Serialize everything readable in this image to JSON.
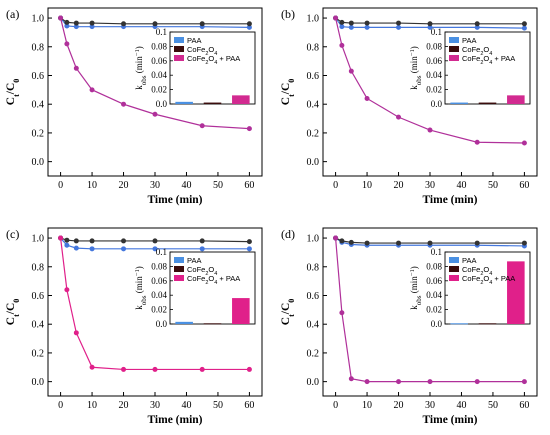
{
  "legend_labels": [
    "PAA",
    "CoFe2O4",
    "CoFe2O4 + PAA"
  ],
  "chart_data": [
    {
      "type": "line",
      "panel_label": "(a)",
      "xlabel": "Time (min)",
      "ylabel": "Ct/C0",
      "x": [
        0,
        2,
        5,
        10,
        20,
        30,
        45,
        60
      ],
      "xlim": [
        -4,
        64
      ],
      "xticks": [
        0,
        10,
        20,
        30,
        40,
        50,
        60
      ],
      "ylim": [
        -0.1,
        1.07
      ],
      "yticks": [
        0.0,
        0.2,
        0.4,
        0.6,
        0.8,
        1.0
      ],
      "colors": [
        "#4477dd",
        "#333333",
        "#b0309a"
      ],
      "series": [
        {
          "name": "PAA",
          "values": [
            1.0,
            0.945,
            0.94,
            0.94,
            0.94,
            0.94,
            0.94,
            0.935
          ]
        },
        {
          "name": "CoFe2O4",
          "values": [
            1.0,
            0.97,
            0.965,
            0.965,
            0.96,
            0.96,
            0.96,
            0.96
          ]
        },
        {
          "name": "CoFe2O4 + PAA",
          "values": [
            1.0,
            0.82,
            0.65,
            0.5,
            0.4,
            0.33,
            0.25,
            0.23
          ]
        }
      ],
      "inset": {
        "type": "bar",
        "ylabel": "kobs (min-1)",
        "ylim": [
          0,
          0.1
        ],
        "yticks": [
          0.0,
          0.02,
          0.04,
          0.06,
          0.08,
          0.1
        ],
        "categories": [
          "PAA",
          "CoFe2O4",
          "CoFe2O4 + PAA"
        ],
        "values": [
          0.003,
          0.002,
          0.012
        ],
        "colors": [
          "#4a90e2",
          "#3a0c0c",
          "#d22a90"
        ]
      }
    },
    {
      "type": "line",
      "panel_label": "(b)",
      "xlabel": "Time (min)",
      "ylabel": "Ct/C0",
      "x": [
        0,
        2,
        5,
        10,
        20,
        30,
        45,
        60
      ],
      "xlim": [
        -4,
        64
      ],
      "xticks": [
        0,
        10,
        20,
        30,
        40,
        50,
        60
      ],
      "ylim": [
        -0.1,
        1.07
      ],
      "yticks": [
        0.0,
        0.2,
        0.4,
        0.6,
        0.8,
        1.0
      ],
      "colors": [
        "#4477dd",
        "#333333",
        "#b0309a"
      ],
      "series": [
        {
          "name": "PAA",
          "values": [
            1.0,
            0.94,
            0.935,
            0.935,
            0.935,
            0.935,
            0.935,
            0.93
          ]
        },
        {
          "name": "CoFe2O4",
          "values": [
            1.0,
            0.97,
            0.965,
            0.965,
            0.965,
            0.96,
            0.96,
            0.96
          ]
        },
        {
          "name": "CoFe2O4 + PAA",
          "values": [
            1.0,
            0.81,
            0.63,
            0.44,
            0.31,
            0.22,
            0.135,
            0.13
          ]
        }
      ],
      "inset": {
        "type": "bar",
        "ylabel": "kobs (min-1)",
        "ylim": [
          0,
          0.1
        ],
        "yticks": [
          0.0,
          0.02,
          0.04,
          0.06,
          0.08,
          0.1
        ],
        "categories": [
          "PAA",
          "CoFe2O4",
          "CoFe2O4 + PAA"
        ],
        "values": [
          0.002,
          0.002,
          0.012
        ],
        "colors": [
          "#4a90e2",
          "#3a0c0c",
          "#d22a90"
        ]
      }
    },
    {
      "type": "line",
      "panel_label": "(c)",
      "xlabel": "Time (min)",
      "ylabel": "Ct/C0",
      "x": [
        0,
        2,
        5,
        10,
        20,
        30,
        45,
        60
      ],
      "xlim": [
        -4,
        64
      ],
      "xticks": [
        0,
        10,
        20,
        30,
        40,
        50,
        60
      ],
      "ylim": [
        -0.1,
        1.07
      ],
      "yticks": [
        0.0,
        0.2,
        0.4,
        0.6,
        0.8,
        1.0
      ],
      "colors": [
        "#4477dd",
        "#333333",
        "#e0208a"
      ],
      "series": [
        {
          "name": "PAA",
          "values": [
            1.0,
            0.95,
            0.93,
            0.925,
            0.925,
            0.925,
            0.925,
            0.925
          ]
        },
        {
          "name": "CoFe2O4",
          "values": [
            1.0,
            0.985,
            0.98,
            0.98,
            0.98,
            0.98,
            0.98,
            0.975
          ]
        },
        {
          "name": "CoFe2O4 + PAA",
          "values": [
            1.0,
            0.64,
            0.34,
            0.1,
            0.085,
            0.085,
            0.085,
            0.085
          ]
        }
      ],
      "inset": {
        "type": "bar",
        "ylabel": "kobs (min-1)",
        "ylim": [
          0,
          0.1
        ],
        "yticks": [
          0.0,
          0.02,
          0.04,
          0.06,
          0.08,
          0.1
        ],
        "categories": [
          "PAA",
          "CoFe2O4",
          "CoFe2O4 + PAA"
        ],
        "values": [
          0.003,
          0.001,
          0.036
        ],
        "colors": [
          "#4a90e2",
          "#3a0c0c",
          "#e0208a"
        ]
      }
    },
    {
      "type": "line",
      "panel_label": "(d)",
      "xlabel": "Time (min)",
      "ylabel": "Ct/C0",
      "x": [
        0,
        2,
        5,
        10,
        20,
        30,
        45,
        60
      ],
      "xlim": [
        -4,
        64
      ],
      "xticks": [
        0,
        10,
        20,
        30,
        40,
        50,
        60
      ],
      "ylim": [
        -0.1,
        1.07
      ],
      "yticks": [
        0.0,
        0.2,
        0.4,
        0.6,
        0.8,
        1.0
      ],
      "colors": [
        "#4477dd",
        "#333333",
        "#b0309a"
      ],
      "series": [
        {
          "name": "PAA",
          "values": [
            1.0,
            0.97,
            0.955,
            0.95,
            0.95,
            0.95,
            0.95,
            0.945
          ]
        },
        {
          "name": "CoFe2O4",
          "values": [
            1.0,
            0.98,
            0.97,
            0.965,
            0.965,
            0.965,
            0.965,
            0.965
          ]
        },
        {
          "name": "CoFe2O4 + PAA",
          "values": [
            1.0,
            0.48,
            0.02,
            0.0,
            0.0,
            0.0,
            0.0,
            0.0
          ]
        }
      ],
      "inset": {
        "type": "bar",
        "ylabel": "kobs (min-1)",
        "ylim": [
          0,
          0.1
        ],
        "yticks": [
          0.0,
          0.02,
          0.04,
          0.06,
          0.08,
          0.1
        ],
        "categories": [
          "PAA",
          "CoFe2O4",
          "CoFe2O4 + PAA"
        ],
        "values": [
          0.001,
          0.001,
          0.087
        ],
        "colors": [
          "#4a90e2",
          "#3a0c0c",
          "#e0208a"
        ]
      }
    }
  ]
}
